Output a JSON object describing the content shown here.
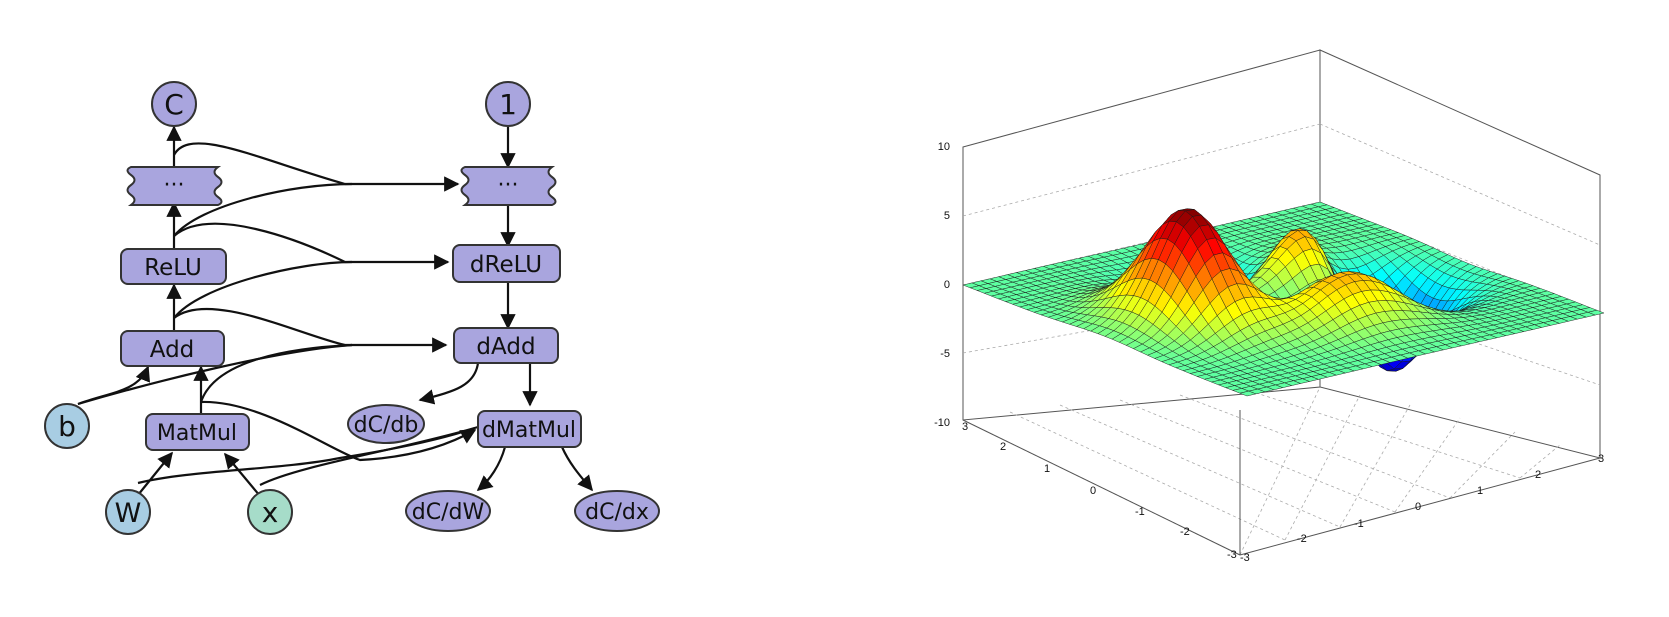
{
  "colors": {
    "op_fill": "#a9a5de",
    "param_fill": "#a8cde3",
    "input_fill": "#a6dcc9",
    "stroke": "#333333",
    "edge": "#111111"
  },
  "graph": {
    "nodes": {
      "c": "C",
      "one": "1",
      "dots_fwd": "···",
      "dots_bwd": "···",
      "relu": "ReLU",
      "drelu": "dReLU",
      "add": "Add",
      "dadd": "dAdd",
      "b": "b",
      "dcdb": "dC/db",
      "matmul": "MatMul",
      "dmatmul": "dMatMul",
      "w": "W",
      "x": "x",
      "dcdw": "dC/dW",
      "dcdx": "dC/dx"
    }
  },
  "surface_plot": {
    "z_ticks": [
      "10",
      "5",
      "0",
      "-5",
      "-10"
    ],
    "y_ticks": [
      "3",
      "2",
      "1",
      "0",
      "-1",
      "-2",
      "-3"
    ],
    "x_ticks": [
      "-3",
      "-2",
      "-1",
      "0",
      "1",
      "2",
      "3"
    ],
    "colormap": "jet"
  }
}
